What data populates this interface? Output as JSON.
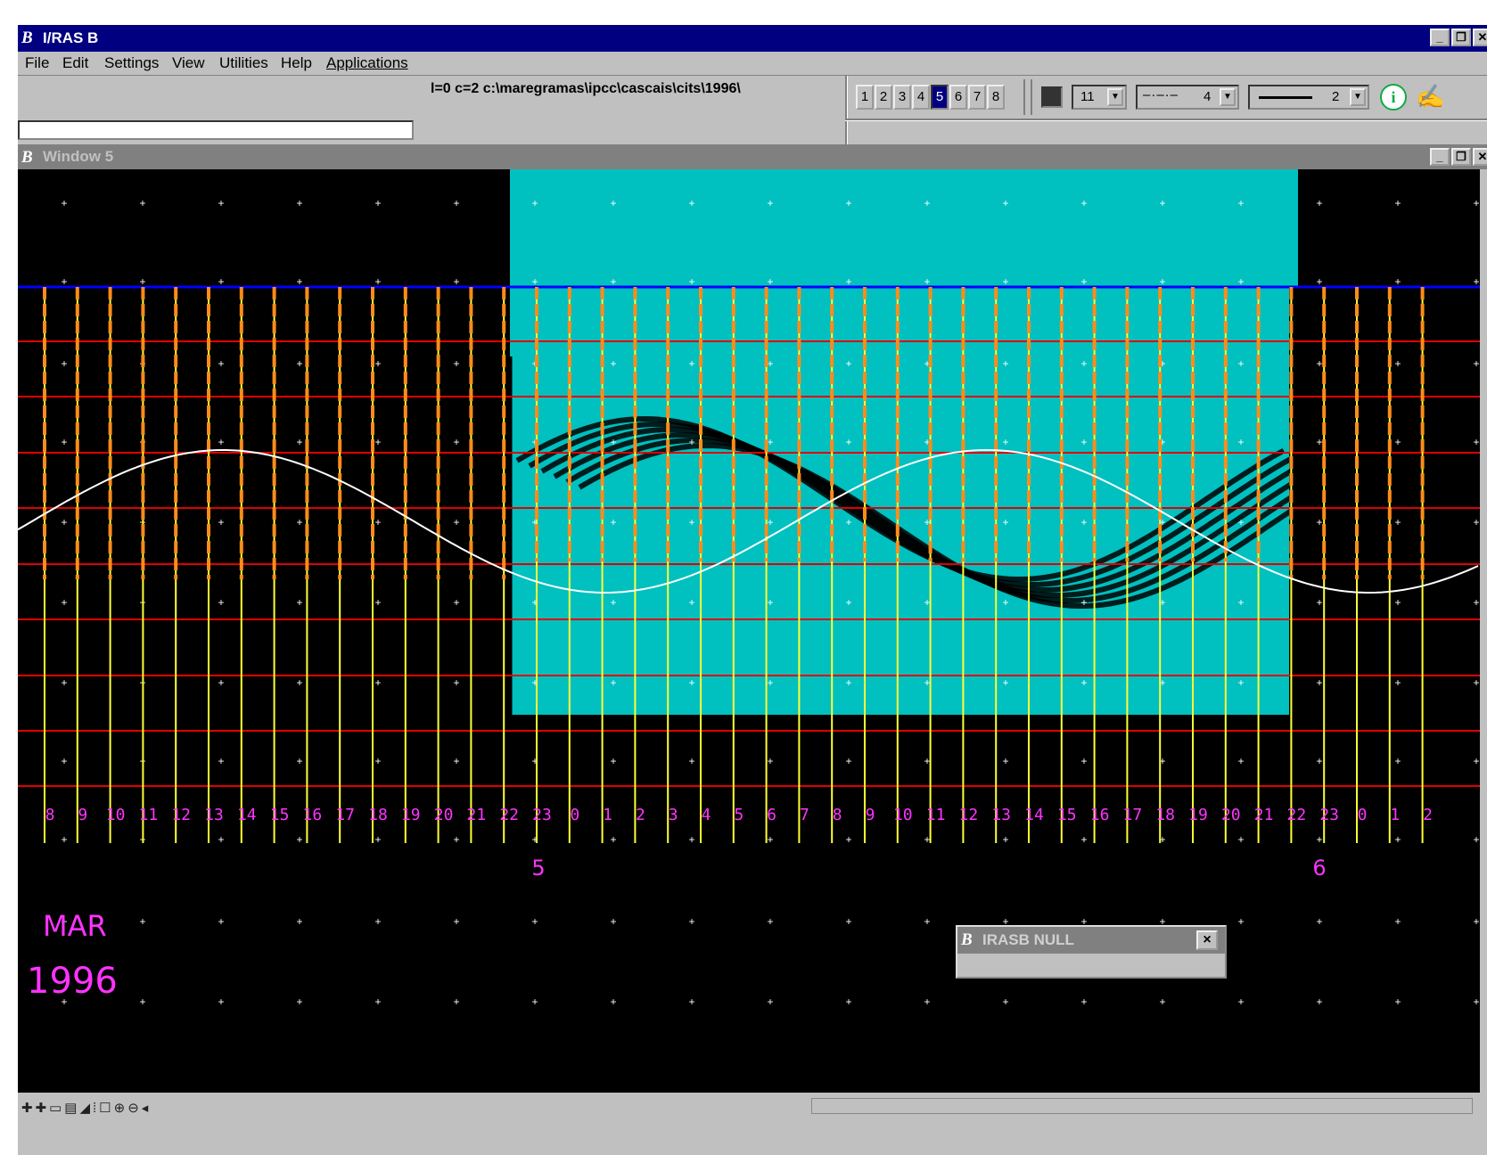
{
  "app": {
    "title": "I/RAS B"
  },
  "menu": [
    "File",
    "Edit",
    "Settings",
    "View",
    "Utilities",
    "Help",
    "Applications"
  ],
  "toolbar": {
    "status_text": "l=0 c=2 c:\\maregramas\\ipcc\\cascais\\cits\\1996\\",
    "keyin_value": "",
    "view_buttons": [
      "1",
      "2",
      "3",
      "4",
      "5",
      "6",
      "7",
      "8"
    ],
    "active_view": "5",
    "level_value": "11",
    "style_value": "4",
    "weight_value": "2"
  },
  "child_window": {
    "title": "Window 5"
  },
  "plot": {
    "hour_labels": [
      "8",
      "9",
      "10",
      "11",
      "12",
      "13",
      "14",
      "15",
      "16",
      "17",
      "18",
      "19",
      "20",
      "21",
      "22",
      "23",
      "0",
      "1",
      "2",
      "3",
      "4",
      "5",
      "6",
      "7",
      "8",
      "9",
      "10",
      "11",
      "12",
      "13",
      "14",
      "15",
      "16",
      "17",
      "18",
      "19",
      "20",
      "21",
      "22",
      "23",
      "0",
      "1",
      "2"
    ],
    "day_labels": [
      "5",
      "6"
    ],
    "month_label": "MAR",
    "year_label": "1996"
  },
  "dialog": {
    "title": "IRASB NULL",
    "close_label": "×"
  },
  "colors": {
    "title_active": "#000080",
    "title_inactive": "#808080",
    "grid_red": "#e00000",
    "grid_yellow": "#ffff33",
    "grid_orange": "#ff8c1a",
    "ref_blue": "#0000ff",
    "raster_cyan": "#00c0c0",
    "label_magenta": "#ff33ff"
  }
}
